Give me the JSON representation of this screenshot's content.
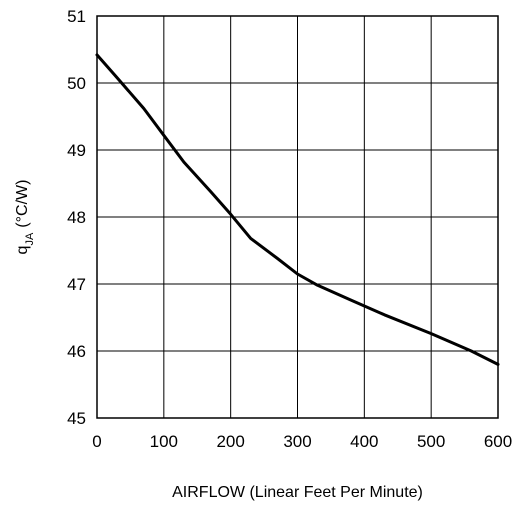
{
  "chart_data": {
    "type": "line",
    "title": "",
    "xlabel": "AIRFLOW (Linear Feet Per Minute)",
    "ylabel": {
      "symbol": "q",
      "subscript": "JA",
      "unit": "(°C/W)"
    },
    "xlim": [
      0,
      600
    ],
    "ylim": [
      45,
      51
    ],
    "xticks": [
      0,
      100,
      200,
      300,
      400,
      500,
      600
    ],
    "yticks": [
      45,
      46,
      47,
      48,
      49,
      50,
      51
    ],
    "grid": true,
    "legend": "none",
    "line_color": "#000000",
    "series": [
      {
        "x": [
          0,
          30,
          70,
          100,
          130,
          170,
          200,
          230,
          270,
          300,
          330,
          380,
          430,
          500,
          560,
          600
        ],
        "y": [
          50.42,
          50.08,
          49.62,
          49.22,
          48.82,
          48.38,
          48.04,
          47.68,
          47.38,
          47.15,
          46.98,
          46.76,
          46.54,
          46.26,
          46.0,
          45.8
        ]
      }
    ]
  }
}
